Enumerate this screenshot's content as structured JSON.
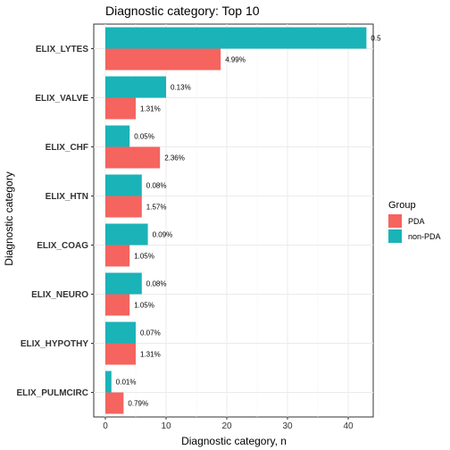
{
  "chart_data": {
    "type": "bar",
    "orientation": "horizontal",
    "title": "Diagnostic category: Top 10",
    "xlabel": "Diagnostic category, n",
    "ylabel": "Diagnostic category",
    "categories": [
      "ELIX_LYTES",
      "ELIX_VALVE",
      "ELIX_CHF",
      "ELIX_HTN",
      "ELIX_COAG",
      "ELIX_NEURO",
      "ELIX_HYPOTHY",
      "ELIX_PULMCIRC"
    ],
    "xlim": [
      0,
      46
    ],
    "xticks": [
      "0",
      "10",
      "20",
      "30",
      "40"
    ],
    "grid": true,
    "legend_title": "Group",
    "legend_placement": "right",
    "series": [
      {
        "name": "non-PDA",
        "color": "#1ab3b8",
        "values": [
          43,
          10,
          4,
          6,
          7,
          6,
          5,
          1
        ],
        "labels": [
          "0.5",
          "0.13%",
          "0.05%",
          "0.08%",
          "0.09%",
          "0.08%",
          "0.07%",
          "0.01%"
        ]
      },
      {
        "name": "PDA",
        "color": "#f5645f",
        "values": [
          19,
          5,
          9,
          6,
          4,
          4,
          5,
          3
        ],
        "labels": [
          "4.99%",
          "1.31%",
          "2.36%",
          "1.57%",
          "1.05%",
          "1.05%",
          "1.31%",
          "0.79%"
        ]
      }
    ],
    "legend_order": [
      "PDA",
      "non-PDA"
    ]
  }
}
